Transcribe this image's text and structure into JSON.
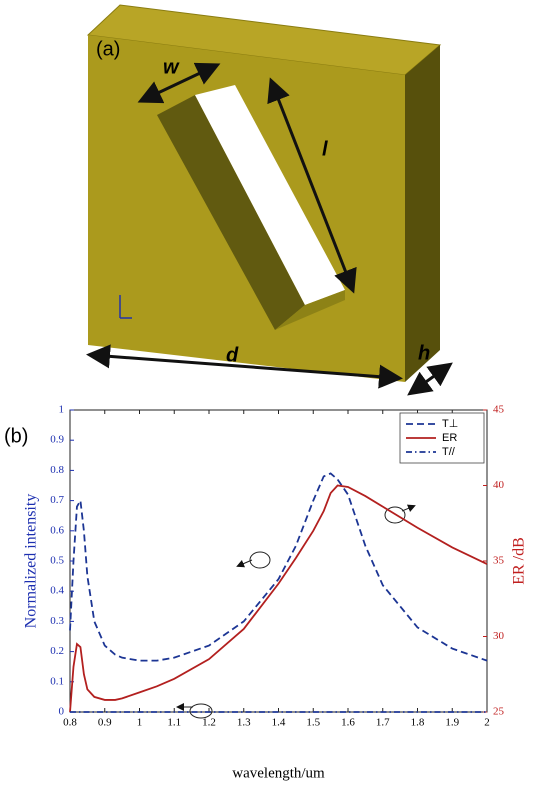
{
  "figure_a": {
    "label": "(a)",
    "width_label": "w",
    "length_label": "l",
    "side_label": "d",
    "thickness_label": "h"
  },
  "chart_data": {
    "type": "line",
    "panel_label": "(b)",
    "x_label": "wavelength/um",
    "y_label": "Normalized intensity",
    "y2_label": "ER /dB",
    "x": [
      0.8,
      0.81,
      0.82,
      0.83,
      0.84,
      0.85,
      0.87,
      0.9,
      0.93,
      0.95,
      1.0,
      1.05,
      1.1,
      1.2,
      1.3,
      1.4,
      1.45,
      1.5,
      1.53,
      1.55,
      1.57,
      1.6,
      1.65,
      1.7,
      1.8,
      1.9,
      2.0
    ],
    "series": [
      {
        "name": "T⊥",
        "color": "#1c3594",
        "line_style": "dashed",
        "axis": "y",
        "values": [
          0.27,
          0.5,
          0.68,
          0.7,
          0.6,
          0.45,
          0.3,
          0.22,
          0.19,
          0.18,
          0.17,
          0.17,
          0.18,
          0.22,
          0.3,
          0.44,
          0.55,
          0.7,
          0.78,
          0.79,
          0.77,
          0.72,
          0.55,
          0.42,
          0.28,
          0.21,
          0.17
        ]
      },
      {
        "name": "ER",
        "color": "#b3201f",
        "line_style": "solid",
        "axis": "y2",
        "values": [
          25,
          28,
          29.5,
          29.3,
          27.5,
          26.5,
          26,
          25.8,
          25.8,
          25.9,
          26.3,
          26.7,
          27.2,
          28.5,
          30.5,
          33.5,
          35.2,
          37,
          38.3,
          39.5,
          40,
          39.9,
          39.3,
          38.6,
          37.2,
          35.9,
          34.8
        ]
      },
      {
        "name": "T//",
        "color": "#1c3594",
        "line_style": "dashdot",
        "axis": "y",
        "values": [
          0,
          0,
          0,
          0,
          0,
          0,
          0,
          0,
          0,
          0,
          0,
          0,
          0,
          0,
          0,
          0,
          0,
          0,
          0,
          0,
          0,
          0,
          0,
          0,
          0,
          0,
          0
        ]
      }
    ],
    "xlim": [
      0.8,
      2
    ],
    "xticks": [
      0.8,
      0.9,
      1,
      1.1,
      1.2,
      1.3,
      1.4,
      1.5,
      1.6,
      1.7,
      1.8,
      1.9,
      2
    ],
    "ylim": [
      0,
      1
    ],
    "yticks": [
      0,
      0.1,
      0.2,
      0.3,
      0.4,
      0.5,
      0.6,
      0.7,
      0.8,
      0.9,
      1
    ],
    "y2lim": [
      25,
      45
    ],
    "y2ticks": [
      25,
      30,
      35,
      40,
      45
    ],
    "y_color": "#1c2fb0",
    "y2_color": "#c01f1f",
    "legend": "upper right",
    "grid": false
  }
}
